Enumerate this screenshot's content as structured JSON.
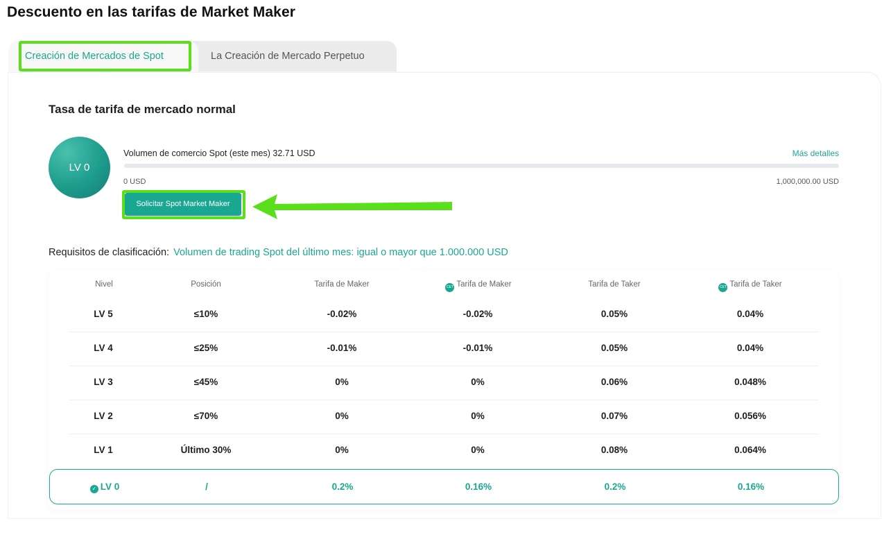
{
  "page": {
    "title": "Descuento en las tarifas de Market Maker"
  },
  "tabs": [
    {
      "label": "Creación de Mercados de Spot",
      "active": true
    },
    {
      "label": "La Creación de Mercado Perpetuo",
      "active": false
    }
  ],
  "section": {
    "title": "Tasa de tarifa de mercado normal"
  },
  "level": {
    "badge": "LV 0"
  },
  "volume": {
    "text": "Volumen de comercio Spot (este mes) 32.71 USD",
    "more_link": "Más detalles",
    "min_label": "0 USD",
    "max_label": "1,000,000.00 USD",
    "progress_fraction": 3.27e-05
  },
  "apply_button": {
    "label": "Solicitar Spot Market Maker"
  },
  "requirements": {
    "label": "Requisitos de clasificación:",
    "value": "Volumen de trading Spot del último mes: igual o mayor que 1.000.000 USD"
  },
  "table": {
    "coin_icon_text": "CET",
    "columns": [
      "Nivel",
      "Posición",
      "Tarifa de Maker",
      "Tarifa de Maker",
      "Tarifa de Taker",
      "Tarifa de Taker"
    ],
    "rows": [
      [
        "LV 5",
        "≤10%",
        "-0.02%",
        "-0.02%",
        "0.05%",
        "0.04%"
      ],
      [
        "LV 4",
        "≤25%",
        "-0.01%",
        "-0.01%",
        "0.05%",
        "0.04%"
      ],
      [
        "LV 3",
        "≤45%",
        "0%",
        "0%",
        "0.06%",
        "0.048%"
      ],
      [
        "LV 2",
        "≤70%",
        "0%",
        "0%",
        "0.07%",
        "0.056%"
      ],
      [
        "LV 1",
        "Último 30%",
        "0%",
        "0%",
        "0.08%",
        "0.064%"
      ]
    ],
    "current_row": [
      "LV 0",
      "/",
      "0.2%",
      "0.16%",
      "0.2%",
      "0.16%"
    ]
  },
  "colors": {
    "accent": "#1aa792",
    "highlight": "#59e01b"
  }
}
